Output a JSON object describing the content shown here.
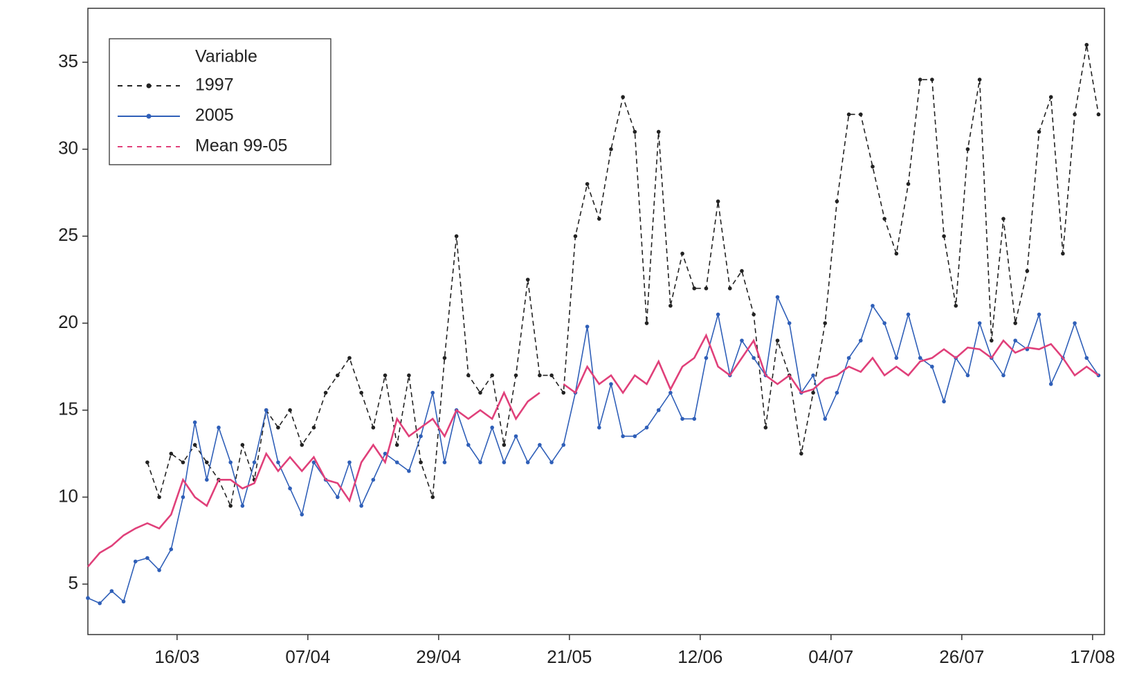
{
  "chart_data": {
    "type": "line",
    "x": [
      60,
      62,
      64,
      66,
      68,
      70,
      72,
      74,
      76,
      78,
      80,
      82,
      84,
      86,
      88,
      90,
      92,
      94,
      96,
      98,
      100,
      102,
      104,
      106,
      108,
      110,
      112,
      114,
      116,
      118,
      120,
      122,
      124,
      126,
      128,
      130,
      132,
      134,
      136,
      138,
      140,
      142,
      144,
      146,
      148,
      150,
      152,
      154,
      156,
      158,
      160,
      162,
      164,
      166,
      168,
      170,
      172,
      174,
      176,
      178,
      180,
      182,
      184,
      186,
      188,
      190,
      192,
      194,
      196,
      198,
      200,
      202,
      204,
      206,
      208,
      210,
      212,
      214,
      216,
      218,
      220,
      222,
      224,
      226,
      228,
      230
    ],
    "series": [
      {
        "name": "1997",
        "color": "#222222",
        "dashed": true,
        "markers": true,
        "values": [
          null,
          null,
          null,
          null,
          null,
          12,
          10,
          12.5,
          12,
          13,
          12,
          11,
          9.5,
          13,
          11,
          15,
          14,
          15,
          13,
          14,
          16,
          17,
          18,
          16,
          14,
          17,
          13,
          17,
          12,
          10,
          18,
          25,
          17,
          16,
          17,
          13,
          17,
          22.5,
          17,
          17,
          16,
          25,
          28,
          26,
          30,
          33,
          31,
          20,
          31,
          21,
          24,
          22,
          22,
          27,
          22,
          23,
          20.5,
          14,
          19,
          17,
          12.5,
          16,
          20,
          27,
          32,
          32,
          29,
          26,
          24,
          28,
          34,
          34,
          25,
          21,
          30,
          34,
          19,
          26,
          20,
          23,
          31,
          33,
          24,
          32,
          36,
          32
        ]
      },
      {
        "name": "2005",
        "color": "#2f5fb8",
        "dashed": false,
        "markers": true,
        "values": [
          4.2,
          3.9,
          4.6,
          4.0,
          6.3,
          6.5,
          5.8,
          7.0,
          10,
          14.3,
          11,
          14,
          12,
          9.5,
          12,
          15,
          12,
          10.5,
          9,
          12,
          11,
          10,
          12,
          9.5,
          11,
          12.5,
          12,
          11.5,
          13.5,
          16,
          12,
          15,
          13,
          12,
          14,
          12,
          13.5,
          12,
          13,
          12,
          13,
          16,
          19.8,
          14,
          16.5,
          13.5,
          13.5,
          14,
          15,
          16,
          14.5,
          14.5,
          18,
          20.5,
          17,
          19,
          18,
          17,
          21.5,
          20,
          16,
          17,
          14.5,
          16,
          18,
          19,
          21,
          20,
          18,
          20.5,
          18,
          17.5,
          15.5,
          18,
          17,
          20,
          18,
          17,
          19,
          18.5,
          20.5,
          16.5,
          18,
          20,
          18,
          17
        ]
      },
      {
        "name": "Mean 99-05",
        "color": "#e0407a",
        "dashed": false,
        "markers": false,
        "values": [
          6,
          6.8,
          7.2,
          7.8,
          8.2,
          8.5,
          8.2,
          9,
          11,
          10,
          9.5,
          11,
          11,
          10.5,
          10.8,
          12.5,
          11.5,
          12.3,
          11.5,
          12.3,
          11,
          10.8,
          9.8,
          12,
          13,
          12,
          14.5,
          13.5,
          14,
          14.5,
          13.5,
          15,
          14.5,
          15,
          14.5,
          16,
          14.5,
          15.5,
          16,
          null,
          16.5,
          16,
          17.5,
          16.5,
          17,
          16,
          17,
          16.5,
          17.8,
          16.2,
          17.5,
          18,
          19.3,
          17.5,
          17,
          18,
          19,
          17,
          16.5,
          17,
          16,
          16.2,
          16.8,
          17,
          17.5,
          17.2,
          18,
          17,
          17.5,
          17,
          17.8,
          18,
          18.5,
          18,
          18.6,
          18.5,
          18,
          19,
          18.3,
          18.6,
          18.5,
          18.8,
          18,
          17,
          17.5,
          17
        ]
      }
    ],
    "legend_title": "Variable",
    "legend": "upper left",
    "xlim": [
      60,
      231
    ],
    "xticks": [
      {
        "value": 75,
        "label": "16/03"
      },
      {
        "value": 97,
        "label": "07/04"
      },
      {
        "value": 119,
        "label": "29/04"
      },
      {
        "value": 141,
        "label": "21/05"
      },
      {
        "value": 163,
        "label": "12/06"
      },
      {
        "value": 185,
        "label": "04/07"
      },
      {
        "value": 207,
        "label": "26/07"
      },
      {
        "value": 229,
        "label": "17/08"
      }
    ],
    "ylim": [
      2.1,
      38.1
    ],
    "yticks": [
      5,
      10,
      15,
      20,
      25,
      30,
      35
    ]
  }
}
